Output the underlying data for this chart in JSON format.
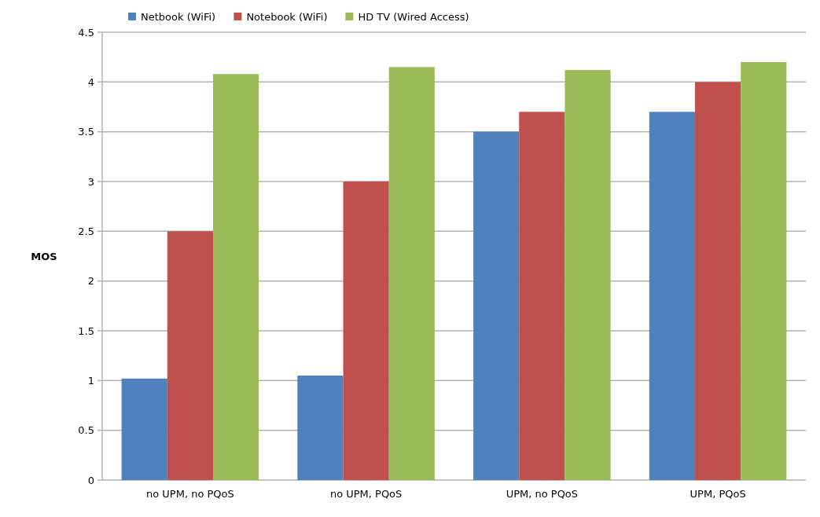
{
  "chart_data": {
    "type": "bar",
    "ylabel": "MOS",
    "categories": [
      "no UPM, no PQoS",
      "no UPM, PQoS",
      "UPM, no PQoS",
      "UPM, PQoS"
    ],
    "series": [
      {
        "name": "Netbook (WiFi)",
        "color": "#4f81bd",
        "values": [
          1.02,
          1.05,
          3.5,
          3.7
        ]
      },
      {
        "name": "Notebook (WiFi)",
        "color": "#c0504d",
        "values": [
          2.5,
          3.0,
          3.7,
          4.0
        ]
      },
      {
        "name": "HD TV (Wired Access)",
        "color": "#9bbb59",
        "values": [
          4.08,
          4.15,
          4.12,
          4.2
        ]
      }
    ],
    "ylim": [
      0,
      4.5
    ],
    "yticks": [
      0,
      0.5,
      1,
      1.5,
      2,
      2.5,
      3,
      3.5,
      4,
      4.5
    ],
    "grid": "y",
    "legend": "top"
  }
}
